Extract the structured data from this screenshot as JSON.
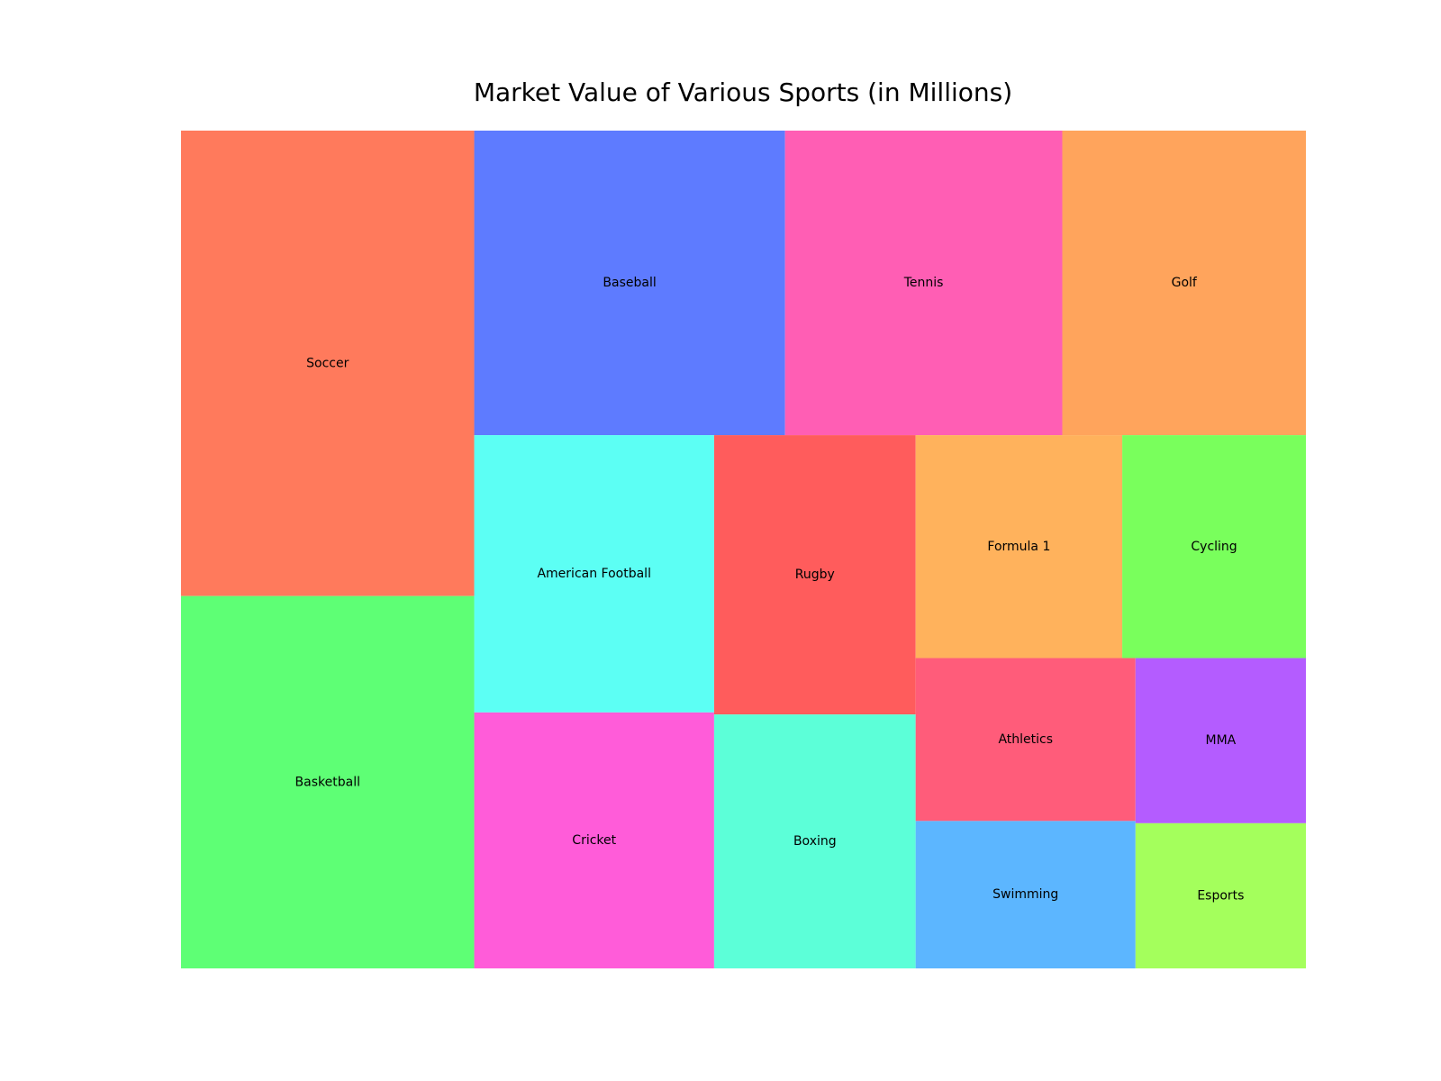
{
  "chart_data": {
    "type": "treemap",
    "title": "Market Value of Various Sports (in Millions)",
    "items": [
      {
        "label": "Soccer",
        "value": 1600,
        "color": "#FF7A5C"
      },
      {
        "label": "Basketball",
        "value": 1280,
        "color": "#5EFF75"
      },
      {
        "label": "Baseball",
        "value": 1110,
        "color": "#5E7BFF"
      },
      {
        "label": "Tennis",
        "value": 990,
        "color": "#FF5EB4"
      },
      {
        "label": "Golf",
        "value": 870,
        "color": "#FFA45C"
      },
      {
        "label": "American Football",
        "value": 780,
        "color": "#5CFFF4"
      },
      {
        "label": "Cricket",
        "value": 720,
        "color": "#FF5CD9"
      },
      {
        "label": "Rugby",
        "value": 660,
        "color": "#FF5C5C"
      },
      {
        "label": "Boxing",
        "value": 600,
        "color": "#5CFFD8"
      },
      {
        "label": "Formula 1",
        "value": 540,
        "color": "#FFB25C"
      },
      {
        "label": "Cycling",
        "value": 480,
        "color": "#79FF5C"
      },
      {
        "label": "Athletics",
        "value": 420,
        "color": "#FF5C7A"
      },
      {
        "label": "Swimming",
        "value": 380,
        "color": "#5CB6FF"
      },
      {
        "label": "MMA",
        "value": 330,
        "color": "#B45CFF"
      },
      {
        "label": "Esports",
        "value": 290,
        "color": "#A4FF5C"
      }
    ]
  }
}
